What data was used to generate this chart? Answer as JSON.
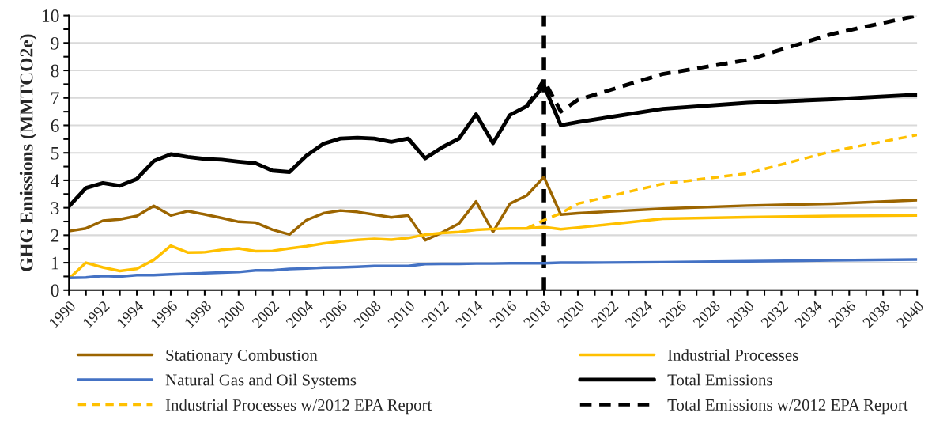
{
  "chart_data": {
    "type": "line",
    "ylabel": "GHG Emissions (MMTCO2e)",
    "xlim": [
      1990,
      2040
    ],
    "ylim": [
      0,
      10
    ],
    "xticks": [
      1990,
      {
        "value": 1991,
        "label": null
      },
      1992,
      {
        "value": 1993,
        "label": null
      },
      1994,
      {
        "value": 1995,
        "label": null
      },
      1996,
      {
        "value": 1997,
        "label": null
      },
      1998,
      {
        "value": 1999,
        "label": null
      },
      2000,
      {
        "value": 2001,
        "label": null
      },
      2002,
      {
        "value": 2003,
        "label": null
      },
      2004,
      {
        "value": 2005,
        "label": null
      },
      2006,
      {
        "value": 2007,
        "label": null
      },
      2008,
      {
        "value": 2009,
        "label": null
      },
      2010,
      {
        "value": 2011,
        "label": null
      },
      2012,
      {
        "value": 2013,
        "label": null
      },
      2014,
      {
        "value": 2015,
        "label": null
      },
      2016,
      {
        "value": 2017,
        "label": null
      },
      2018,
      {
        "value": 2019,
        "label": null
      },
      2020,
      {
        "value": 2021,
        "label": null
      },
      2022,
      {
        "value": 2023,
        "label": null
      },
      2024,
      {
        "value": 2025,
        "label": null
      },
      2026,
      {
        "value": 2027,
        "label": null
      },
      2028,
      {
        "value": 2029,
        "label": null
      },
      2030,
      {
        "value": 2031,
        "label": null
      },
      2032,
      {
        "value": 2033,
        "label": null
      },
      2034,
      {
        "value": 2035,
        "label": null
      },
      2036,
      {
        "value": 2037,
        "label": null
      },
      2038,
      {
        "value": 2039,
        "label": null
      },
      2040
    ],
    "yticks": [
      0,
      {
        "value": 0.5,
        "label": null
      },
      1,
      {
        "value": 1.5,
        "label": null
      },
      2,
      {
        "value": 2.5,
        "label": null
      },
      3,
      {
        "value": 3.5,
        "label": null
      },
      4,
      {
        "value": 4.5,
        "label": null
      },
      5,
      {
        "value": 5.5,
        "label": null
      },
      6,
      {
        "value": 6.5,
        "label": null
      },
      7,
      {
        "value": 7.5,
        "label": null
      },
      8,
      {
        "value": 8.5,
        "label": null
      },
      9,
      {
        "value": 9.5,
        "label": null
      },
      10
    ],
    "grid": "y",
    "legend": "bottom",
    "marker": "none",
    "ref_lines": [
      {
        "axis": "x",
        "value": 2018,
        "color": "#000000",
        "line_style": "dashed"
      }
    ],
    "series": [
      {
        "name": "Stationary Combustion",
        "color": "#9c6500",
        "line_style": "solid",
        "x": [
          1990,
          1991,
          1992,
          1993,
          1994,
          1995,
          1996,
          1997,
          1998,
          1999,
          2000,
          2001,
          2002,
          2003,
          2004,
          2005,
          2006,
          2007,
          2008,
          2009,
          2010,
          2011,
          2012,
          2013,
          2014,
          2015,
          2016,
          2017,
          2018,
          2019,
          2020,
          2025,
          2030,
          2035,
          2040
        ],
        "values": [
          2.15,
          2.25,
          2.53,
          2.58,
          2.7,
          3.07,
          2.72,
          2.88,
          2.76,
          2.63,
          2.49,
          2.46,
          2.2,
          2.03,
          2.55,
          2.8,
          2.9,
          2.85,
          2.75,
          2.65,
          2.72,
          1.82,
          2.1,
          2.43,
          3.23,
          2.12,
          3.15,
          3.45,
          4.12,
          2.75,
          2.8,
          2.97,
          3.08,
          3.15,
          3.28
        ]
      },
      {
        "name": "Industrial Processes",
        "color": "#ffc000",
        "line_style": "solid",
        "x": [
          1990,
          1991,
          1992,
          1993,
          1994,
          1995,
          1996,
          1997,
          1998,
          1999,
          2000,
          2001,
          2002,
          2003,
          2004,
          2005,
          2006,
          2007,
          2008,
          2009,
          2010,
          2011,
          2012,
          2013,
          2014,
          2015,
          2016,
          2017,
          2018,
          2019,
          2020,
          2025,
          2030,
          2035,
          2040
        ],
        "values": [
          0.42,
          1.0,
          0.83,
          0.7,
          0.78,
          1.1,
          1.62,
          1.37,
          1.38,
          1.47,
          1.52,
          1.42,
          1.43,
          1.52,
          1.6,
          1.7,
          1.77,
          1.83,
          1.87,
          1.84,
          1.9,
          2.02,
          2.08,
          2.12,
          2.2,
          2.23,
          2.25,
          2.25,
          2.3,
          2.22,
          2.28,
          2.6,
          2.66,
          2.7,
          2.72
        ]
      },
      {
        "name": "Natural Gas and Oil Systems",
        "color": "#4472c4",
        "line_style": "solid",
        "x": [
          1990,
          1991,
          1992,
          1993,
          1994,
          1995,
          1996,
          1997,
          1998,
          1999,
          2000,
          2001,
          2002,
          2003,
          2004,
          2005,
          2006,
          2007,
          2008,
          2009,
          2010,
          2011,
          2012,
          2013,
          2014,
          2015,
          2016,
          2017,
          2018,
          2019,
          2020,
          2025,
          2030,
          2035,
          2040
        ],
        "values": [
          0.45,
          0.46,
          0.52,
          0.5,
          0.55,
          0.55,
          0.58,
          0.6,
          0.62,
          0.64,
          0.66,
          0.72,
          0.72,
          0.77,
          0.79,
          0.82,
          0.83,
          0.85,
          0.88,
          0.88,
          0.88,
          0.95,
          0.96,
          0.96,
          0.97,
          0.97,
          0.98,
          0.98,
          0.98,
          1.0,
          1.0,
          1.02,
          1.05,
          1.09,
          1.12
        ]
      },
      {
        "name": "Total Emissions",
        "color": "#000000",
        "line_style": "solid",
        "x": [
          1990,
          1991,
          1992,
          1993,
          1994,
          1995,
          1996,
          1997,
          1998,
          1999,
          2000,
          2001,
          2002,
          2003,
          2004,
          2005,
          2006,
          2007,
          2008,
          2009,
          2010,
          2011,
          2012,
          2013,
          2014,
          2015,
          2016,
          2017,
          2018,
          2019,
          2020,
          2025,
          2030,
          2035,
          2040
        ],
        "values": [
          3.05,
          3.72,
          3.9,
          3.8,
          4.05,
          4.7,
          4.95,
          4.85,
          4.78,
          4.75,
          4.68,
          4.62,
          4.35,
          4.3,
          4.9,
          5.33,
          5.52,
          5.55,
          5.52,
          5.4,
          5.52,
          4.8,
          5.2,
          5.52,
          6.4,
          5.35,
          6.38,
          6.7,
          7.45,
          6.0,
          6.12,
          6.6,
          6.82,
          6.95,
          7.12
        ]
      },
      {
        "name": "Industrial Processes w/2012 EPA Report",
        "color": "#ffc000",
        "line_style": "dashed",
        "x": [
          2017,
          2018,
          2019,
          2020,
          2025,
          2030,
          2035,
          2040
        ],
        "values": [
          2.25,
          2.55,
          2.8,
          3.15,
          3.87,
          4.25,
          5.06,
          5.65
        ]
      },
      {
        "name": "Total Emissions w/2012 EPA Report",
        "color": "#000000",
        "line_style": "dashed",
        "x": [
          2017,
          2018,
          2019,
          2020,
          2025,
          2030,
          2035,
          2040
        ],
        "values": [
          6.7,
          7.65,
          6.5,
          6.93,
          7.87,
          8.38,
          9.33,
          10.0
        ]
      }
    ]
  }
}
